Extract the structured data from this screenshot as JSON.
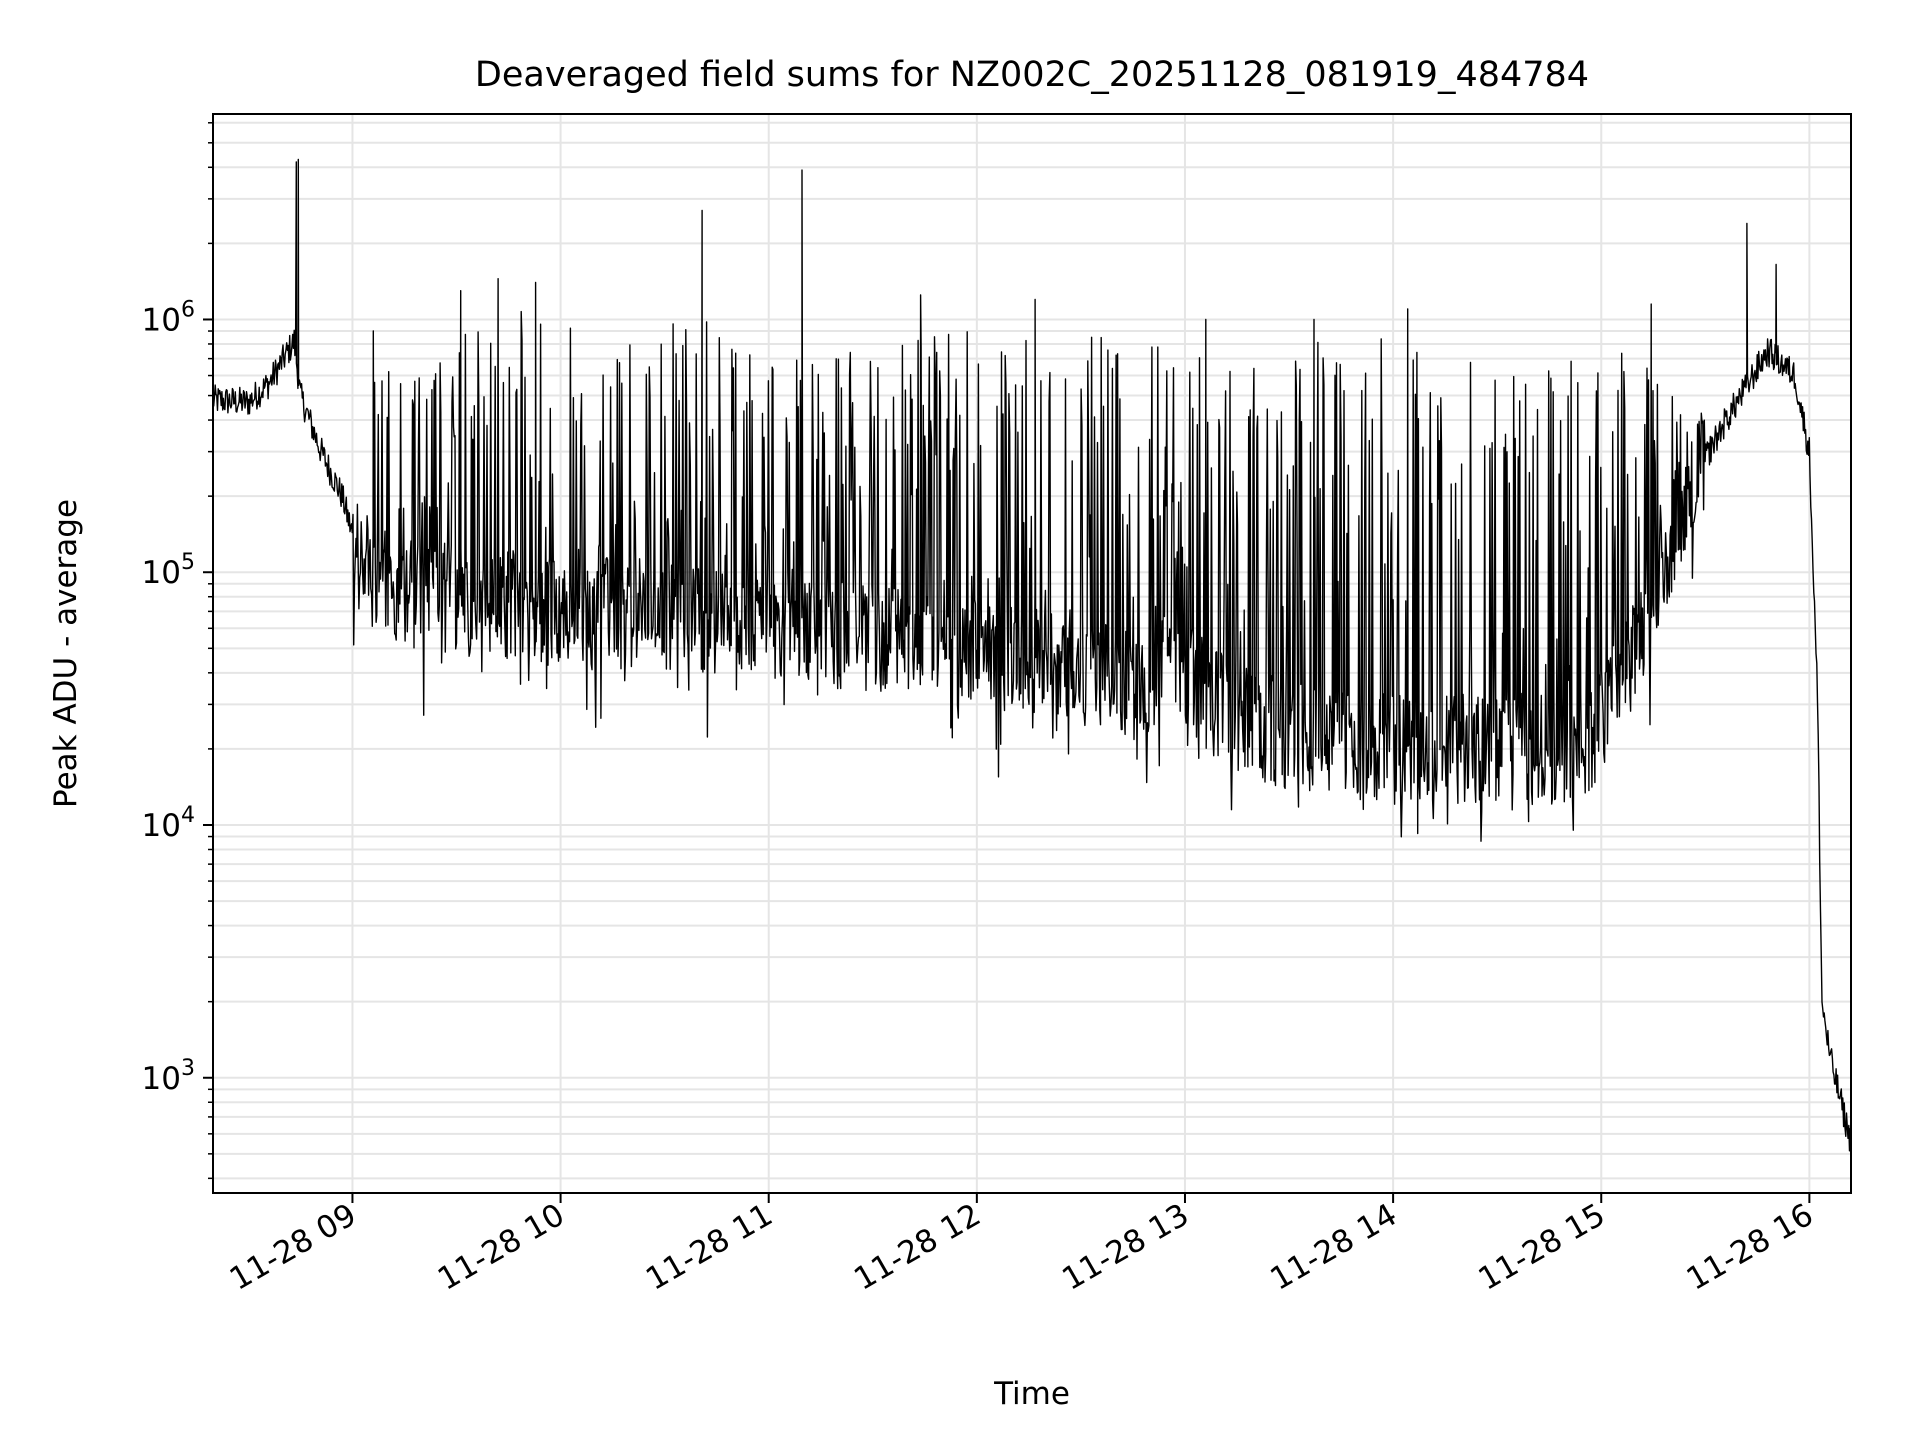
{
  "chart_data": {
    "type": "line",
    "title": "Deaveraged field sums for NZ002C_20251128_081919_484784",
    "xlabel": "Time",
    "ylabel": "Peak ADU - average",
    "yscale": "log",
    "grid": true,
    "line_color": "#000000",
    "grid_color": "#e5e5e5",
    "xlim_hours": [
      8.33,
      16.2
    ],
    "ylim": [
      350,
      6500000
    ],
    "x_ticks": [
      {
        "value": 9,
        "label": "11-28 09"
      },
      {
        "value": 10,
        "label": "11-28 10"
      },
      {
        "value": 11,
        "label": "11-28 11"
      },
      {
        "value": 12,
        "label": "11-28 12"
      },
      {
        "value": 13,
        "label": "11-28 13"
      },
      {
        "value": 14,
        "label": "11-28 14"
      },
      {
        "value": 15,
        "label": "11-28 15"
      },
      {
        "value": 16,
        "label": "11-28 16"
      }
    ],
    "y_ticks": [
      {
        "value": 1000,
        "base": "10",
        "exp": "3"
      },
      {
        "value": 10000,
        "base": "10",
        "exp": "4"
      },
      {
        "value": 100000,
        "base": "10",
        "exp": "5"
      },
      {
        "value": 1000000,
        "base": "10",
        "exp": "6"
      }
    ],
    "baseline_profile": [
      [
        8.33,
        480000
      ],
      [
        8.5,
        470000
      ],
      [
        8.6,
        560000
      ],
      [
        8.72,
        820000
      ],
      [
        8.75,
        500000
      ],
      [
        8.85,
        300000
      ],
      [
        8.95,
        200000
      ],
      [
        9.05,
        100000
      ],
      [
        9.2,
        85000
      ],
      [
        9.5,
        78000
      ],
      [
        10.0,
        70000
      ],
      [
        10.5,
        68000
      ],
      [
        11.0,
        62000
      ],
      [
        11.5,
        55000
      ],
      [
        12.0,
        48000
      ],
      [
        12.5,
        42000
      ],
      [
        12.75,
        35000
      ],
      [
        12.95,
        45000
      ],
      [
        13.05,
        35000
      ],
      [
        13.3,
        25000
      ],
      [
        13.6,
        22000
      ],
      [
        14.0,
        20000
      ],
      [
        14.5,
        20000
      ],
      [
        14.9,
        20000
      ],
      [
        15.05,
        30000
      ],
      [
        15.2,
        60000
      ],
      [
        15.4,
        200000
      ],
      [
        15.6,
        400000
      ],
      [
        15.8,
        750000
      ],
      [
        15.93,
        600000
      ],
      [
        16.0,
        300000
      ],
      [
        16.04,
        30000
      ],
      [
        16.06,
        2000
      ],
      [
        16.1,
        1200
      ],
      [
        16.2,
        550
      ]
    ],
    "spikes": [
      {
        "t": 8.73,
        "v": 4200000
      },
      {
        "t": 8.74,
        "v": 4300000
      },
      {
        "t": 9.1,
        "v": 900000
      },
      {
        "t": 9.52,
        "v": 1300000
      },
      {
        "t": 9.7,
        "v": 1450000
      },
      {
        "t": 9.88,
        "v": 1400000
      },
      {
        "t": 10.68,
        "v": 2700000
      },
      {
        "t": 11.16,
        "v": 3900000
      },
      {
        "t": 11.73,
        "v": 1250000
      },
      {
        "t": 12.28,
        "v": 1200000
      },
      {
        "t": 13.1,
        "v": 1000000
      },
      {
        "t": 13.62,
        "v": 1000000
      },
      {
        "t": 14.07,
        "v": 1100000
      },
      {
        "t": 15.24,
        "v": 1150000
      },
      {
        "t": 15.7,
        "v": 2400000
      },
      {
        "t": 15.84,
        "v": 1650000
      }
    ],
    "noise_spike_ceiling": [
      [
        9.05,
        800000
      ],
      [
        9.3,
        600000
      ],
      [
        9.7,
        1200000
      ],
      [
        10.2,
        900000
      ],
      [
        10.7,
        1000000
      ],
      [
        11.2,
        700000
      ],
      [
        11.8,
        900000
      ],
      [
        12.4,
        900000
      ],
      [
        12.9,
        800000
      ],
      [
        13.2,
        700000
      ],
      [
        13.6,
        900000
      ],
      [
        14.2,
        800000
      ],
      [
        14.6,
        600000
      ],
      [
        15.1,
        900000
      ],
      [
        15.35,
        500000
      ]
    ]
  }
}
